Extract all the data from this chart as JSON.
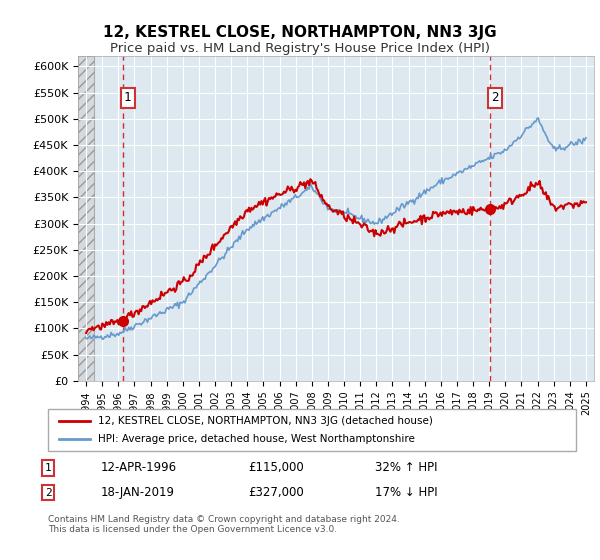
{
  "title": "12, KESTREL CLOSE, NORTHAMPTON, NN3 3JG",
  "subtitle": "Price paid vs. HM Land Registry's House Price Index (HPI)",
  "ylabel_values": [
    "£0",
    "£50K",
    "£100K",
    "£150K",
    "£200K",
    "£250K",
    "£300K",
    "£350K",
    "£400K",
    "£450K",
    "£500K",
    "£550K",
    "£600K"
  ],
  "ylim": [
    0,
    620000
  ],
  "yticks": [
    0,
    50000,
    100000,
    150000,
    200000,
    250000,
    300000,
    350000,
    400000,
    450000,
    500000,
    550000,
    600000
  ],
  "xlim_start": 1993.5,
  "xlim_end": 2025.5,
  "sale1_x": 1996.28,
  "sale1_y": 115000,
  "sale1_label": "1",
  "sale2_x": 2019.05,
  "sale2_y": 327000,
  "sale2_label": "2",
  "property_color": "#cc0000",
  "hpi_color": "#6699cc",
  "dashed_color": "#cc0000",
  "background_left": "#e8e8e8",
  "background_main": "#dde8f0",
  "grid_color": "#ffffff",
  "legend_line1": "12, KESTREL CLOSE, NORTHAMPTON, NN3 3JG (detached house)",
  "legend_line2": "HPI: Average price, detached house, West Northamptonshire",
  "annotation1_date": "12-APR-1996",
  "annotation1_price": "£115,000",
  "annotation1_hpi": "32% ↑ HPI",
  "annotation2_date": "18-JAN-2019",
  "annotation2_price": "£327,000",
  "annotation2_hpi": "17% ↓ HPI",
  "footer": "Contains HM Land Registry data © Crown copyright and database right 2024.\nThis data is licensed under the Open Government Licence v3.0.",
  "title_fontsize": 11,
  "subtitle_fontsize": 9.5
}
